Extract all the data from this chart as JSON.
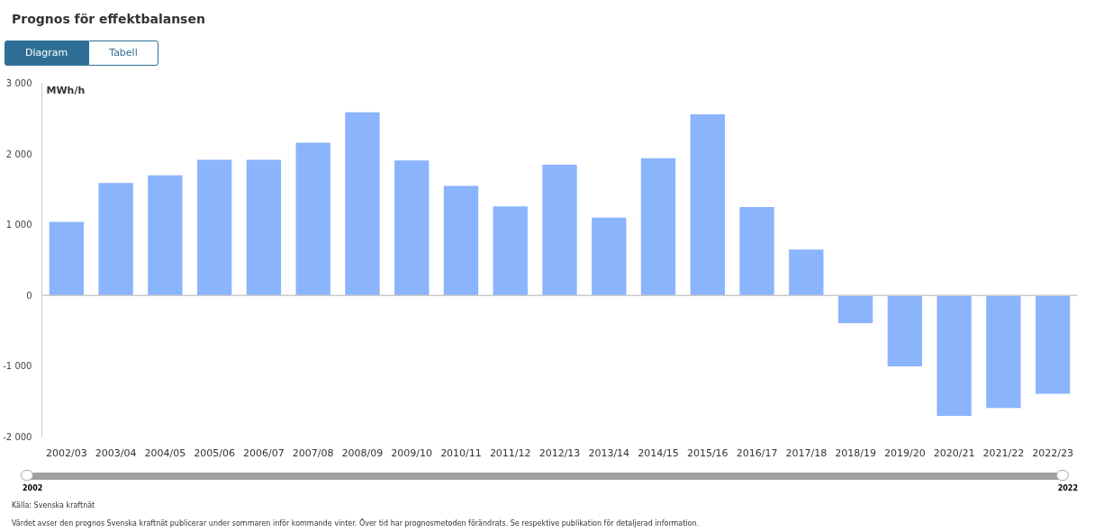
{
  "chart_data": {
    "type": "bar",
    "title": "Prognos för effektbalansen",
    "ylabel": "MWh/h",
    "categories": [
      "2002/03",
      "2003/04",
      "2004/05",
      "2005/06",
      "2006/07",
      "2007/08",
      "2008/09",
      "2009/10",
      "2010/11",
      "2011/12",
      "2012/13",
      "2013/14",
      "2014/15",
      "2015/16",
      "2016/17",
      "2017/18",
      "2018/19",
      "2019/20",
      "2020/21",
      "2021/22",
      "2022/23"
    ],
    "values": [
      1040,
      1590,
      1700,
      1920,
      1920,
      2160,
      2590,
      1910,
      1550,
      1260,
      1850,
      1100,
      1940,
      2560,
      1250,
      650,
      -390,
      -1000,
      -1700,
      -1590,
      -1390
    ],
    "color": "#8ab4fc",
    "ylim": [
      -2000,
      3000
    ],
    "yticks": [
      {
        "value": -2000,
        "label": "-2 000"
      },
      {
        "value": -1000,
        "label": "-1 000"
      },
      0,
      {
        "value": 1000,
        "label": "1 000"
      },
      {
        "value": 2000,
        "label": "2 000"
      },
      {
        "value": 3000,
        "label": "3 000"
      }
    ],
    "grid": false,
    "ref_lines": [
      {
        "axis": "y",
        "value": 0,
        "color": "#cccccc"
      }
    ],
    "annotations": [
      "Diagram",
      "Tabell",
      "2002",
      "2022",
      "Källa: Svenska kraftnät",
      "Värdet avser den prognos Svenska kraftnät publicerar under sommaren inför kommande vinter. Över tid har prognosmetoden förändrats. Se respektive publikation för detaljerad information."
    ]
  }
}
